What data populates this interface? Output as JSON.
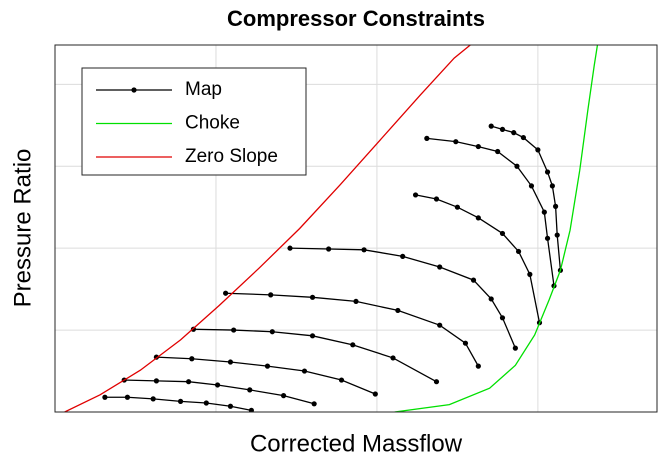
{
  "chart_data": {
    "type": "line",
    "title": "Compressor Constraints",
    "x_label": "Corrected Massflow",
    "y_label": "Pressure Ratio",
    "xlim": [
      0,
      3.74
    ],
    "ylim": [
      0,
      4.48
    ],
    "xticks": [
      0,
      1,
      2,
      3
    ],
    "yticks": [
      0,
      1,
      2,
      3,
      4
    ],
    "grid": true,
    "legend": "upper left",
    "series": [
      {
        "name": "Map",
        "color": "#000000",
        "markers": true,
        "x": [
          0.31,
          0.45,
          0.61,
          0.78,
          0.94,
          1.09,
          1.22,
          null,
          0.43,
          0.63,
          0.83,
          1.01,
          1.21,
          1.42,
          1.61,
          null,
          0.63,
          0.85,
          1.09,
          1.32,
          1.55,
          1.78,
          1.99,
          null,
          0.86,
          1.11,
          1.35,
          1.6,
          1.85,
          2.1,
          2.37,
          null,
          1.06,
          1.34,
          1.6,
          1.87,
          2.13,
          2.39,
          2.55,
          2.63,
          null,
          1.46,
          1.7,
          1.92,
          2.16,
          2.39,
          2.6,
          2.71,
          2.78,
          2.86,
          null,
          2.24,
          2.37,
          2.5,
          2.63,
          2.78,
          2.88,
          2.95,
          3.01,
          null,
          2.31,
          2.49,
          2.63,
          2.75,
          2.87,
          2.96,
          3.04,
          3.06,
          3.1,
          null,
          2.71,
          2.78,
          2.85,
          2.91,
          3.0,
          3.06,
          3.09,
          3.11,
          3.12,
          3.14
        ],
        "values": [
          0.18,
          0.18,
          0.16,
          0.13,
          0.11,
          0.07,
          0.02,
          null,
          0.39,
          0.38,
          0.37,
          0.33,
          0.27,
          0.2,
          0.1,
          null,
          0.67,
          0.65,
          0.61,
          0.56,
          0.5,
          0.39,
          0.22,
          null,
          1.01,
          1.0,
          0.98,
          0.93,
          0.82,
          0.66,
          0.37,
          null,
          1.45,
          1.43,
          1.4,
          1.35,
          1.24,
          1.06,
          0.84,
          0.56,
          null,
          2.0,
          1.99,
          1.98,
          1.9,
          1.77,
          1.61,
          1.38,
          1.15,
          0.78,
          null,
          2.65,
          2.6,
          2.5,
          2.37,
          2.18,
          1.96,
          1.68,
          1.09,
          null,
          3.34,
          3.3,
          3.24,
          3.18,
          3.0,
          2.76,
          2.44,
          2.12,
          1.54,
          null,
          3.49,
          3.45,
          3.41,
          3.35,
          3.2,
          2.93,
          2.76,
          2.51,
          2.16,
          1.73
        ]
      },
      {
        "name": "Choke",
        "color": "#00e000",
        "markers": false,
        "x": [
          2.11,
          2.45,
          2.7,
          2.86,
          2.98,
          3.07,
          3.14,
          3.2,
          3.26,
          3.31,
          3.35,
          3.37
        ],
        "values": [
          0,
          0.09,
          0.29,
          0.57,
          0.94,
          1.37,
          1.73,
          2.22,
          2.95,
          3.68,
          4.23,
          4.48
        ]
      },
      {
        "name": "Zero Slope",
        "color": "#e00000",
        "markers": false,
        "x": [
          0.06,
          0.28,
          0.53,
          0.78,
          1.02,
          1.27,
          1.52,
          1.77,
          2.02,
          2.27,
          2.48,
          2.58
        ],
        "values": [
          0,
          0.21,
          0.51,
          0.88,
          1.3,
          1.76,
          2.24,
          2.77,
          3.32,
          3.87,
          4.32,
          4.48
        ]
      }
    ]
  }
}
